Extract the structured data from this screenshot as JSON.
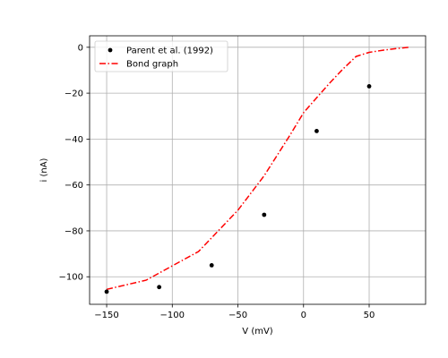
{
  "chart_data": {
    "type": "line",
    "title": "",
    "xlabel": "V (mV)",
    "ylabel": "i (nA)",
    "xlim": [
      -163,
      93
    ],
    "ylim": [
      -112,
      5
    ],
    "x_ticks": [
      -150,
      -100,
      -50,
      0,
      50
    ],
    "y_ticks": [
      0,
      -20,
      -40,
      -60,
      -80,
      -100
    ],
    "x_tick_labels": [
      "−150",
      "−100",
      "−50",
      "0",
      "50"
    ],
    "y_tick_labels": [
      "0",
      "−20",
      "−40",
      "−60",
      "−80",
      "−100"
    ],
    "grid": true,
    "legend_position": "top-left",
    "series": [
      {
        "name": "Parent et al. (1992)",
        "style": "scatter",
        "color": "#000000",
        "x": [
          -150,
          -110,
          -70,
          -30,
          10,
          50
        ],
        "y": [
          -106.5,
          -104.5,
          -95,
          -73,
          -36.5,
          -17
        ]
      },
      {
        "name": "Bond graph",
        "style": "dashdot",
        "color": "#ff0000",
        "x": [
          -150,
          -120,
          -80,
          -50,
          -30,
          -10,
          0,
          10,
          20,
          30,
          40,
          50,
          60,
          70,
          80
        ],
        "y": [
          -105.5,
          -101.5,
          -89,
          -71,
          -56,
          -38,
          -28.5,
          -22,
          -15.5,
          -9.5,
          -4,
          -2.2,
          -1.3,
          -0.6,
          0
        ]
      }
    ]
  }
}
